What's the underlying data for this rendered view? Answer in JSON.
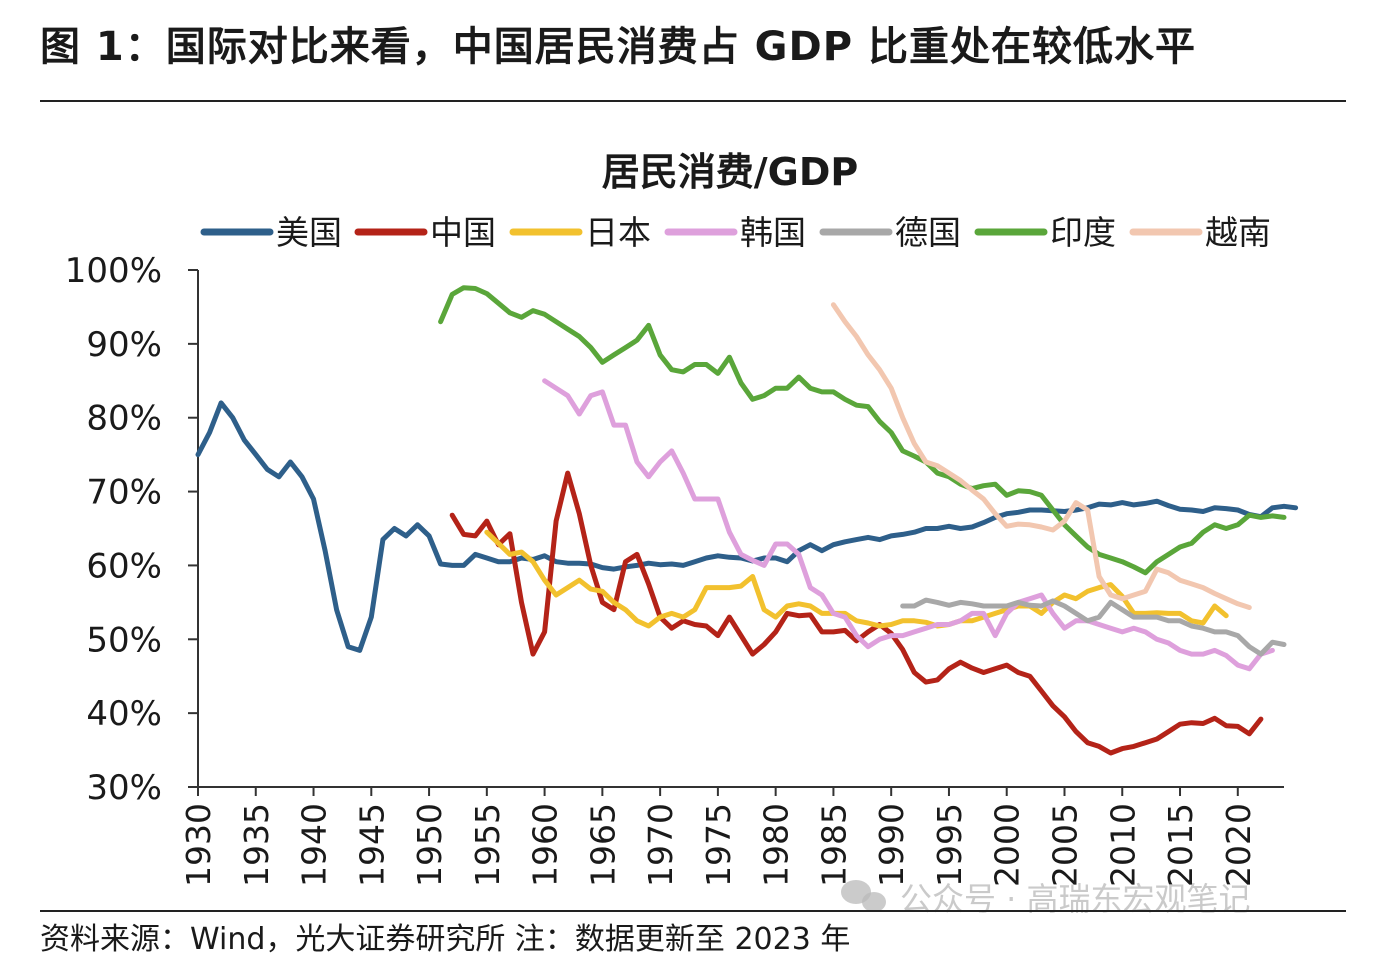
{
  "figure": {
    "title": "图 1：国际对比来看，中国居民消费占 GDP 比重处在较低水平",
    "source_note": "资料来源：Wind，光大证券研究所  注：数据更新至 2023 年",
    "watermark": "公众号 · 高瑞东宏观笔记"
  },
  "chart_data": {
    "type": "line",
    "title": "居民消费/GDP",
    "xlabel": "",
    "ylabel": "",
    "xlim": [
      1930,
      2024
    ],
    "ylim": [
      30,
      100
    ],
    "y_ticks": [
      "30%",
      "40%",
      "50%",
      "60%",
      "70%",
      "80%",
      "90%",
      "100%"
    ],
    "x_ticks": [
      "1930",
      "1935",
      "1940",
      "1945",
      "1950",
      "1955",
      "1960",
      "1965",
      "1970",
      "1975",
      "1980",
      "1985",
      "1990",
      "1995",
      "2000",
      "2005",
      "2010",
      "2015",
      "2020"
    ],
    "legend_position": "top",
    "series": [
      {
        "name": "美国",
        "color": "#2e5f8a",
        "start": 1930,
        "values": [
          75,
          78,
          82,
          80,
          77,
          75,
          73,
          72,
          74,
          72,
          69,
          62,
          54,
          49,
          48.5,
          53,
          63.5,
          65,
          64,
          65.5,
          64,
          60.2,
          60,
          60,
          61.5,
          61,
          60.5,
          60.5,
          61,
          60.8,
          61.3,
          60.5,
          60.3,
          60.3,
          60.2,
          59.7,
          59.5,
          59.8,
          60,
          60.3,
          60.1,
          60.2,
          60,
          60.5,
          61,
          61.3,
          61.1,
          61,
          60.6,
          61,
          61,
          60.5,
          62,
          62.8,
          62,
          62.8,
          63.2,
          63.5,
          63.8,
          63.5,
          64,
          64.2,
          64.5,
          65,
          65,
          65.3,
          65,
          65.2,
          65.8,
          66.5,
          67,
          67.2,
          67.5,
          67.5,
          67.4,
          67.3,
          67.5,
          67.8,
          68.3,
          68.2,
          68.5,
          68.2,
          68.4,
          68.7,
          68.1,
          67.6,
          67.5,
          67.3,
          67.8,
          67.7,
          67.5,
          66.9,
          66.6,
          67.8,
          68,
          67.8
        ]
      },
      {
        "name": "中国",
        "color": "#b42318",
        "start": 1952,
        "values": [
          66.8,
          64.2,
          64,
          66,
          62.8,
          64.3,
          55,
          48,
          51,
          66,
          72.5,
          67,
          60,
          55,
          54,
          60.5,
          61.5,
          57.5,
          53,
          51.5,
          52.5,
          52,
          51.8,
          50.5,
          53,
          50.5,
          48,
          49.3,
          51,
          53.5,
          53.2,
          53.3,
          51,
          51,
          51.2,
          49.8,
          51,
          52,
          50.8,
          48.6,
          45.5,
          44.2,
          44.5,
          46,
          46.9,
          46.1,
          45.5,
          46,
          46.5,
          45.5,
          45,
          43,
          41,
          39.5,
          37.5,
          36,
          35.5,
          34.6,
          35.2,
          35.5,
          36,
          36.5,
          37.5,
          38.5,
          38.7,
          38.6,
          39.3,
          38.3,
          38.2,
          37.2,
          39.2
        ]
      },
      {
        "name": "日本",
        "color": "#f2c12e",
        "start": 1955,
        "values": [
          64.5,
          63,
          61.5,
          61.8,
          60.5,
          58,
          56,
          57,
          58,
          56.8,
          56.5,
          55,
          54,
          52.5,
          51.8,
          53,
          53.5,
          53,
          54,
          57,
          57,
          57,
          57.2,
          58.5,
          54,
          53,
          54.5,
          54.8,
          54.5,
          53.5,
          53.5,
          53.5,
          52.5,
          52.2,
          51.8,
          52,
          52.5,
          52.5,
          52.3,
          51.8,
          52,
          52.5,
          52.5,
          53,
          53.5,
          54,
          54.5,
          54.5,
          53.5,
          55,
          56,
          55.5,
          56.5,
          57,
          57.4,
          55.8,
          53.5,
          53.5,
          53.6,
          53.5,
          53.5,
          52.5,
          52.2,
          54.5,
          53.2
        ]
      },
      {
        "name": "韩国",
        "color": "#dea0dc",
        "start": 1960,
        "values": [
          85,
          84,
          83,
          80.5,
          83,
          83.5,
          79,
          79,
          74,
          72,
          74,
          75.5,
          72.5,
          69,
          69,
          69,
          64.5,
          61.5,
          60.7,
          60,
          62.9,
          62.9,
          61.5,
          57,
          56,
          53.5,
          53,
          50.5,
          49,
          50,
          50.5,
          50.5,
          51,
          51.5,
          52,
          52,
          52.5,
          53.5,
          53.5,
          50.5,
          53.5,
          55,
          55.5,
          56,
          53.5,
          51.5,
          52.5,
          52.5,
          52,
          51.5,
          51,
          51.5,
          51,
          50,
          49.5,
          48.5,
          48,
          48,
          48.5,
          47.8,
          46.5,
          46,
          48,
          48.5
        ]
      },
      {
        "name": "德国",
        "color": "#a8a8a8",
        "start": 1991,
        "values": [
          54.5,
          54.5,
          55.3,
          55,
          54.6,
          55,
          54.8,
          54.5,
          54.5,
          54.5,
          55,
          54.6,
          54.5,
          55.2,
          54.5,
          53.5,
          52.5,
          53,
          55,
          54,
          53,
          53,
          53,
          52.5,
          52.5,
          51.8,
          51.5,
          51,
          51,
          50.5,
          49,
          48,
          49.6,
          49.3
        ]
      },
      {
        "name": "印度",
        "color": "#5aa63a",
        "start": 1951,
        "values": [
          93,
          96.7,
          97.6,
          97.5,
          96.8,
          95.5,
          94.2,
          93.6,
          94.5,
          94,
          93,
          92,
          91,
          89.5,
          87.5,
          88.5,
          89.5,
          90.5,
          92.5,
          88.5,
          86.5,
          86.2,
          87.2,
          87.2,
          86,
          88.2,
          84.7,
          82.5,
          83,
          84,
          84,
          85.5,
          84,
          83.5,
          83.5,
          82.5,
          81.7,
          81.5,
          79.5,
          78,
          75.5,
          74.8,
          74,
          72.5,
          72,
          71,
          70.4,
          70.8,
          71,
          69.5,
          70.1,
          70,
          69.5,
          67.5,
          65.5,
          64,
          62.5,
          61.5,
          61,
          60.5,
          59.8,
          59,
          60.5,
          61.5,
          62.5,
          63,
          64.5,
          65.5,
          65,
          65.5,
          66.8,
          66.5,
          66.7,
          66.5
        ]
      },
      {
        "name": "越南",
        "color": "#f2c7b0",
        "start": 1985,
        "values": [
          95.3,
          93,
          91,
          88.5,
          86.5,
          84,
          80,
          76.5,
          74,
          73.5,
          72.5,
          71.5,
          70.2,
          69,
          67,
          65.3,
          65.6,
          65.5,
          65.2,
          64.8,
          66,
          68.5,
          67.5,
          58.5,
          56,
          55.5,
          56,
          56.5,
          59.5,
          59,
          58,
          57.5,
          57,
          56.2,
          55.5,
          54.8,
          54.3
        ]
      }
    ]
  }
}
